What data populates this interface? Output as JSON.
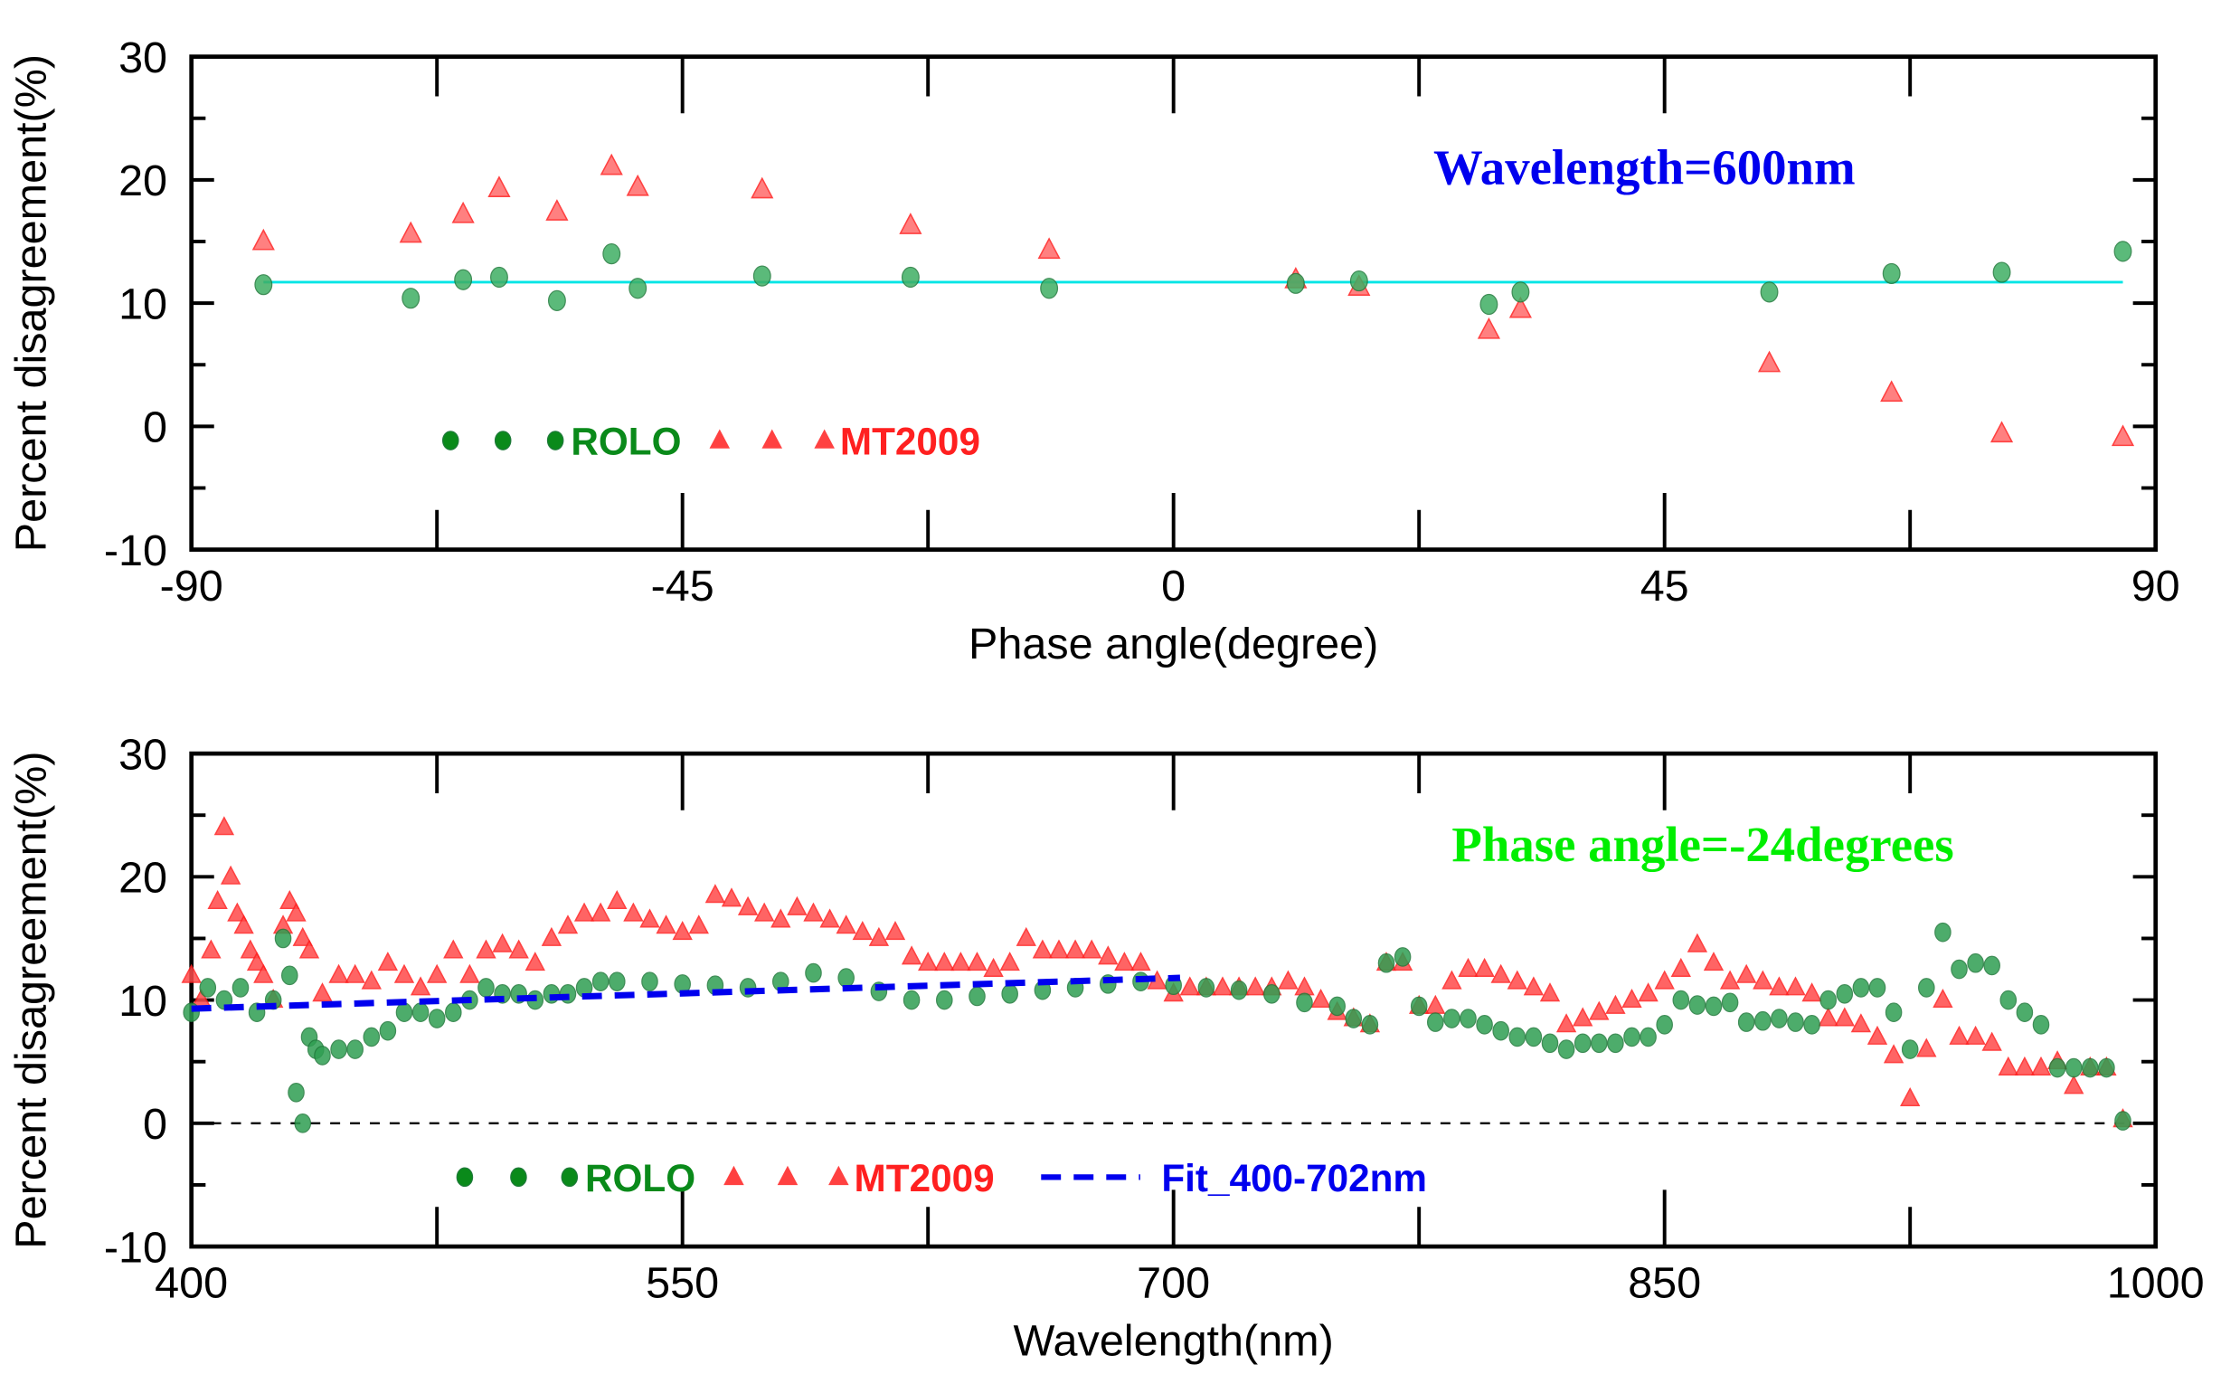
{
  "chart_data": [
    {
      "type": "scatter",
      "xlabel": "Phase angle(degree)",
      "ylabel": "Percent disagreement(%)",
      "xlim": [
        -90,
        90
      ],
      "ylim": [
        -10,
        30
      ],
      "xticks": [
        "-90",
        "-45",
        "0",
        "45",
        "90"
      ],
      "yticks": [
        "-10",
        "0",
        "10",
        "20",
        "30"
      ],
      "annotation": "Wavelength=600nm",
      "legend": [
        "ROLO",
        "MT2009"
      ],
      "legend_placement": "bottom-left",
      "mean_line": 11.7,
      "x": [
        -83.4,
        -69.9,
        -65.1,
        -61.8,
        -56.5,
        -51.5,
        -49.1,
        -37.7,
        -24.1,
        -11.4,
        11.2,
        17.0,
        28.9,
        31.8,
        54.6,
        65.8,
        75.9,
        87.0
      ],
      "series": [
        {
          "name": "ROLO",
          "values": [
            11.5,
            10.4,
            11.9,
            12.1,
            10.2,
            14.0,
            11.2,
            12.2,
            12.1,
            11.2,
            11.6,
            11.8,
            9.9,
            10.9,
            10.9,
            12.4,
            12.5,
            14.2
          ]
        },
        {
          "name": "MT2009",
          "values": [
            15.0,
            15.6,
            17.2,
            19.3,
            17.4,
            21.1,
            19.4,
            19.2,
            16.3,
            14.3,
            11.9,
            11.3,
            7.8,
            9.5,
            5.1,
            2.7,
            -0.6,
            -0.9
          ]
        }
      ]
    },
    {
      "type": "scatter",
      "xlabel": "Wavelength(nm)",
      "ylabel": "Percent disagreement(%)",
      "xlim": [
        400,
        1000
      ],
      "ylim": [
        -10,
        30
      ],
      "xticks": [
        "400",
        "550",
        "700",
        "850",
        "1000"
      ],
      "yticks": [
        "-10",
        "0",
        "10",
        "20",
        "30"
      ],
      "annotation": "Phase angle=-24degrees",
      "legend": [
        "ROLO",
        "MT2009",
        "Fit_400-702nm"
      ],
      "legend_placement": "bottom-left",
      "fit": {
        "x": [
          400,
          702
        ],
        "y": [
          9.3,
          11.8
        ]
      },
      "series": [
        {
          "name": "ROLO",
          "x": [
            400,
            405,
            410,
            415,
            420,
            425,
            428,
            430,
            432,
            434,
            436,
            438,
            440,
            445,
            450,
            455,
            460,
            465,
            470,
            475,
            480,
            485,
            490,
            495,
            500,
            505,
            510,
            515,
            520,
            525,
            530,
            540,
            550,
            560,
            570,
            580,
            590,
            600,
            610,
            620,
            630,
            640,
            650,
            660,
            670,
            680,
            690,
            700,
            710,
            720,
            730,
            740,
            750,
            755,
            760,
            765,
            770,
            775,
            780,
            785,
            790,
            795,
            800,
            805,
            810,
            815,
            820,
            825,
            830,
            835,
            840,
            845,
            850,
            855,
            860,
            865,
            870,
            875,
            880,
            885,
            890,
            895,
            900,
            905,
            910,
            915,
            920,
            925,
            930,
            935,
            940,
            945,
            950,
            955,
            960,
            965,
            970,
            975,
            980,
            985,
            990
          ],
          "values": [
            9,
            11,
            10,
            11,
            9,
            10,
            15,
            12,
            2.5,
            0,
            7,
            6,
            5.5,
            6,
            6,
            7,
            7.5,
            9,
            9,
            8.5,
            9,
            10,
            11,
            10.5,
            10.5,
            10,
            10.5,
            10.5,
            11,
            11.5,
            11.5,
            11.5,
            11.3,
            11.2,
            11,
            11.5,
            12.2,
            11.8,
            10.7,
            10,
            10,
            10.3,
            10.5,
            10.8,
            11,
            11.3,
            11.5,
            11.2,
            11,
            10.8,
            10.5,
            9.8,
            9.5,
            8.5,
            8,
            13,
            13.5,
            9.5,
            8.2,
            8.5,
            8.5,
            8,
            7.5,
            7,
            7,
            6.5,
            6,
            6.5,
            6.5,
            6.5,
            7,
            7,
            8,
            10,
            9.6,
            9.5,
            9.8,
            8.2,
            8.3,
            8.5,
            8.2,
            8,
            10,
            10.5,
            11,
            11,
            9,
            6,
            11,
            15.5,
            12.5,
            13,
            12.8,
            10,
            9,
            8,
            4.5,
            4.5,
            4.5,
            4.5,
            0.2
          ]
        },
        {
          "name": "MT2009",
          "x": [
            400,
            403,
            406,
            408,
            410,
            412,
            414,
            416,
            418,
            420,
            422,
            425,
            428,
            430,
            432,
            434,
            436,
            440,
            445,
            450,
            455,
            460,
            465,
            470,
            475,
            480,
            485,
            490,
            495,
            500,
            505,
            510,
            515,
            520,
            525,
            530,
            535,
            540,
            545,
            550,
            555,
            560,
            565,
            570,
            575,
            580,
            585,
            590,
            595,
            600,
            605,
            610,
            615,
            620,
            625,
            630,
            635,
            640,
            645,
            650,
            655,
            660,
            665,
            670,
            675,
            680,
            685,
            690,
            695,
            700,
            705,
            710,
            715,
            720,
            725,
            730,
            735,
            740,
            745,
            750,
            755,
            760,
            765,
            770,
            775,
            780,
            785,
            790,
            795,
            800,
            805,
            810,
            815,
            820,
            825,
            830,
            835,
            840,
            845,
            850,
            855,
            860,
            865,
            870,
            875,
            880,
            885,
            890,
            895,
            900,
            905,
            910,
            915,
            920,
            925,
            930,
            935,
            940,
            945,
            950,
            955,
            960,
            965,
            970,
            975,
            980,
            985,
            990
          ],
          "values": [
            12,
            10,
            14,
            18,
            24,
            20,
            17,
            16,
            14,
            13,
            12,
            10,
            16,
            18,
            17,
            15,
            14,
            10.5,
            12,
            12,
            11.5,
            13,
            12,
            11,
            12,
            14,
            12,
            14,
            14.5,
            14,
            13,
            15,
            16,
            17,
            17,
            18,
            17,
            16.5,
            16,
            15.5,
            16,
            18.5,
            18.2,
            17.5,
            17,
            16.5,
            17.5,
            17,
            16.5,
            16,
            15.5,
            15,
            15.5,
            13.5,
            13,
            13,
            13,
            13,
            12.5,
            13,
            15,
            14,
            14,
            14,
            14,
            13.5,
            13,
            13,
            11.5,
            10.5,
            11,
            11,
            11,
            11,
            11,
            11,
            11.5,
            11,
            10,
            9,
            8.5,
            8,
            13,
            13,
            9.5,
            9.5,
            11.5,
            12.5,
            12.5,
            12,
            11.5,
            11,
            10.5,
            8,
            8.5,
            9,
            9.5,
            10,
            10.5,
            11.5,
            12.5,
            14.5,
            13,
            11.5,
            12,
            11.5,
            11,
            11,
            10.5,
            8.5,
            8.5,
            8,
            7,
            5.5,
            2,
            6,
            10,
            7,
            7,
            6.5,
            4.5,
            4.5,
            4.5,
            5,
            3,
            4.5,
            4.5,
            0.3
          ]
        }
      ]
    }
  ],
  "colors": {
    "rolo": "#2e9e4f",
    "rolo_legend": "#0a8a1a",
    "mt2009": "#ff2020",
    "fit": "#0000ee",
    "mean": "#00e5e5",
    "ann1": "#0000ee",
    "ann2": "#00ee00"
  }
}
